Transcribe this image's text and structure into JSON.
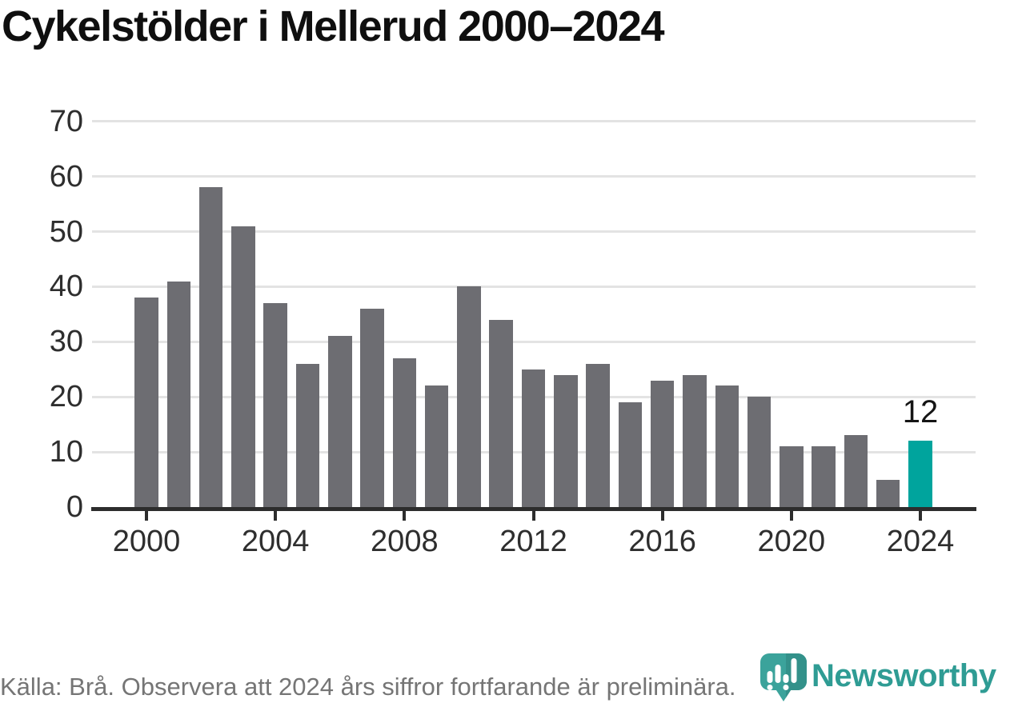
{
  "title": "Cykelstölder i Mellerud 2000–2024",
  "chart_data": {
    "type": "bar",
    "title": "Cykelstölder i Mellerud 2000–2024",
    "categories": [
      "2000",
      "2001",
      "2002",
      "2003",
      "2004",
      "2005",
      "2006",
      "2007",
      "2008",
      "2009",
      "2010",
      "2011",
      "2012",
      "2013",
      "2014",
      "2015",
      "2016",
      "2017",
      "2018",
      "2019",
      "2020",
      "2021",
      "2022",
      "2023",
      "2024"
    ],
    "values": [
      38,
      41,
      58,
      51,
      37,
      26,
      31,
      36,
      27,
      22,
      40,
      34,
      25,
      24,
      26,
      19,
      23,
      24,
      22,
      20,
      11,
      11,
      13,
      5,
      12
    ],
    "xlabel": "",
    "ylabel": "",
    "ylim": [
      0,
      70
    ],
    "yticks": [
      0,
      10,
      20,
      30,
      40,
      50,
      60,
      70
    ],
    "xticks": [
      "2000",
      "2004",
      "2008",
      "2012",
      "2016",
      "2020",
      "2024"
    ],
    "grid": true,
    "legend": "none",
    "bar_color": "#6d6d72",
    "highlight_category": "2024",
    "highlight_color": "#00a49d",
    "annotations": [
      {
        "category": "2024",
        "text": "12"
      }
    ]
  },
  "footer": {
    "source_note": "Källa: Brå. Observera att 2024 års siffror fortfarande är preliminära."
  },
  "branding": {
    "logo_text": "Newsworthy",
    "logo_color": "#2f9c94",
    "logo_icon": "newsworthy-pin-bar-chart"
  }
}
